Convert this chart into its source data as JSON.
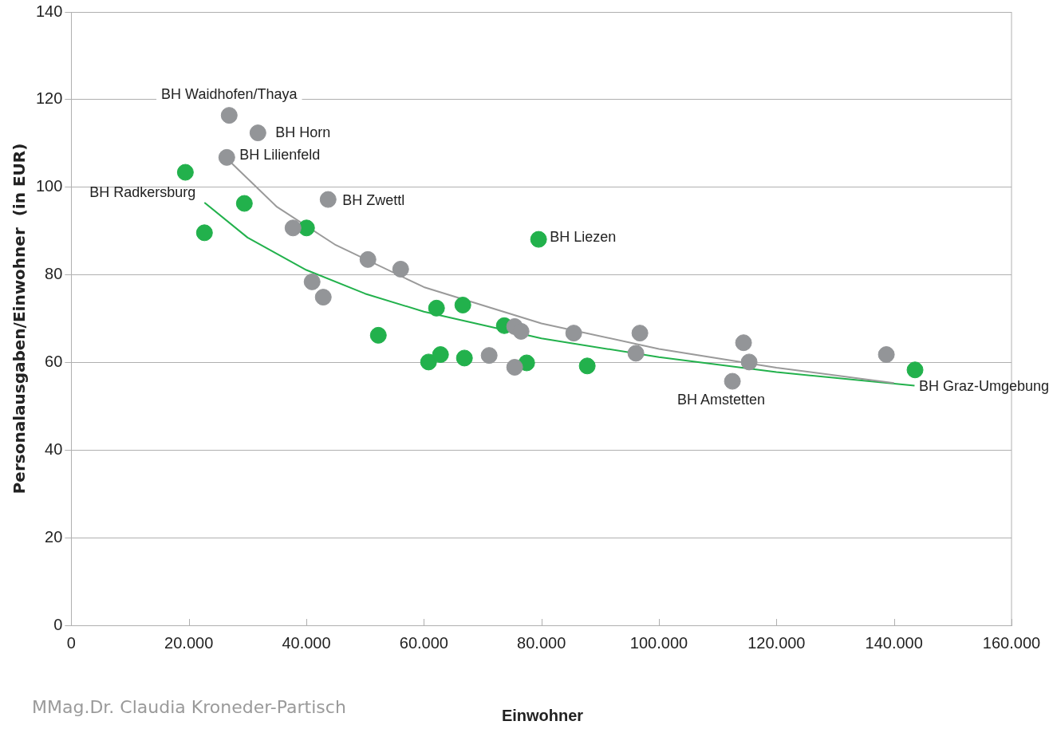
{
  "chart_data": {
    "type": "scatter",
    "xlabel": "Einwohner",
    "ylabel": "Personalausgaben/Einwohner  (in EUR)",
    "xlim": [
      0,
      160000
    ],
    "xticks": [
      0,
      {
        "value": 20000,
        "label": "20.000"
      },
      {
        "value": 40000,
        "label": "40.000"
      },
      {
        "value": 60000,
        "label": "60.000"
      },
      {
        "value": 80000,
        "label": "80.000"
      },
      {
        "value": 100000,
        "label": "100.000"
      },
      {
        "value": 120000,
        "label": "120.000"
      },
      {
        "value": 140000,
        "label": "140.000"
      },
      {
        "value": 160000,
        "label": "160.000"
      }
    ],
    "ylim": [
      0,
      140
    ],
    "yticks": [
      0,
      20,
      40,
      60,
      80,
      100,
      120,
      140
    ],
    "grid": "y",
    "legend": false,
    "marker": "circle",
    "series": [
      {
        "color": "#939598",
        "x": [
          26870,
          31760,
          26460,
          43700,
          37730,
          40980,
          42880,
          50480,
          56050,
          71110,
          75450,
          75450,
          76540,
          85500,
          96760,
          96080,
          112500,
          114400,
          115350,
          138700
        ],
        "values": [
          116.4,
          112.4,
          106.8,
          97.2,
          90.7,
          78.4,
          74.9,
          83.5,
          81.3,
          61.6,
          58.9,
          68.2,
          67.1,
          66.7,
          66.7,
          62.1,
          55.7,
          64.5,
          60.1,
          61.8
        ]
      },
      {
        "color": "#22b14c",
        "x": [
          19410,
          22660,
          29450,
          40030,
          52250,
          60800,
          62830,
          62150,
          66630,
          66900,
          73690,
          77490,
          79520,
          87800,
          143580
        ],
        "values": [
          103.4,
          89.6,
          96.3,
          90.7,
          66.2,
          60.1,
          61.8,
          72.4,
          73.1,
          61.0,
          68.4,
          59.9,
          88.1,
          59.2,
          58.3
        ]
      },
      {
        "type": "line",
        "marker": "none",
        "color": "#9a9a9a",
        "x": [
          26500,
          35000,
          45000,
          60000,
          80000,
          100000,
          120000,
          140000
        ],
        "values": [
          106.5,
          95.5,
          86.8,
          77.2,
          68.9,
          63.1,
          58.8,
          55.3
        ]
      },
      {
        "type": "line",
        "marker": "none",
        "color": "#22b14c",
        "x": [
          22660,
          30000,
          40000,
          50000,
          60000,
          80000,
          100000,
          120000,
          143500
        ],
        "values": [
          96.5,
          88.5,
          81.1,
          75.7,
          71.6,
          65.5,
          61.2,
          57.8,
          54.7
        ]
      }
    ],
    "annotations": [
      {
        "text": "BH Waidhofen/Thaya",
        "x": 26870,
        "y": 116.4
      },
      {
        "text": "BH Horn",
        "x": 31760,
        "y": 112.4
      },
      {
        "text": "BH Lilienfeld",
        "x": 26460,
        "y": 106.8
      },
      {
        "text": "BH Zwettl",
        "x": 43700,
        "y": 97.2
      },
      {
        "text": "BH Radkersburg",
        "x": 19410,
        "y": 103.4
      },
      {
        "text": "BH Liezen",
        "x": 79520,
        "y": 88.1
      },
      {
        "text": "BH Amstetten",
        "x": 112500,
        "y": 55.7
      },
      {
        "text": "BH Graz-Umgebung",
        "x": 143580,
        "y": 58.3
      },
      "MMag.Dr. Claudia Kroneder-Partisch"
    ]
  }
}
